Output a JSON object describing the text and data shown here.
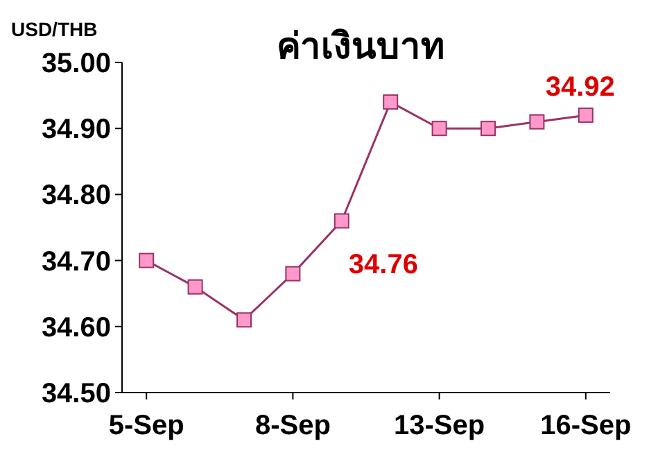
{
  "chart_data": {
    "type": "line",
    "title": "ค่าเงินบาท",
    "ylabel": "USD/THB",
    "categories": [
      "5-Sep",
      null,
      null,
      "8-Sep",
      null,
      null,
      "13-Sep",
      null,
      null,
      "16-Sep"
    ],
    "series": [
      {
        "color": "#993366",
        "values": [
          34.7,
          34.66,
          34.61,
          34.68,
          34.76,
          34.94,
          34.9,
          34.9,
          34.91,
          34.92
        ],
        "value_labels": [
          null,
          null,
          null,
          null,
          "34.76",
          null,
          null,
          null,
          null,
          "34.92"
        ]
      }
    ],
    "ylim": [
      34.5,
      35.0
    ],
    "yticks": [
      {
        "value": 34.5,
        "label": "34.50"
      },
      {
        "value": 34.6,
        "label": "34.60"
      },
      {
        "value": 34.7,
        "label": "34.70"
      },
      {
        "value": 34.8,
        "label": "34.80"
      },
      {
        "value": 34.9,
        "label": "34.90"
      },
      {
        "value": 35.0,
        "label": "35.00"
      }
    ],
    "marker": "square",
    "line_style": "solid",
    "grid": false
  }
}
